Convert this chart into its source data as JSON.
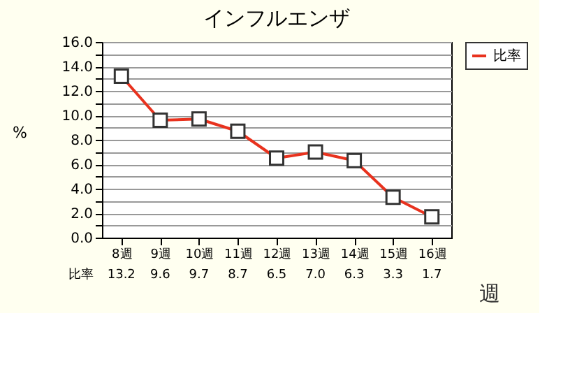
{
  "chart_data": {
    "type": "line",
    "title": "インフルエンザ",
    "xlabel": "週",
    "ylabel": "%",
    "categories": [
      "8週",
      "9週",
      "10週",
      "11週",
      "12週",
      "13週",
      "14週",
      "15週",
      "16週"
    ],
    "series": [
      {
        "name": "比率",
        "color": "#e8321e",
        "values": [
          13.2,
          9.6,
          9.7,
          8.7,
          6.5,
          7.0,
          6.3,
          3.3,
          1.7
        ],
        "value_labels": [
          "13.2",
          "9.6",
          "9.7",
          "8.7",
          "6.5",
          "7.0",
          "6.3",
          "3.3",
          "1.7"
        ]
      }
    ],
    "ylim": [
      0,
      16
    ],
    "yticks": [
      {
        "value": 0,
        "label": "0.0"
      },
      {
        "value": 1,
        "label": null
      },
      {
        "value": 2,
        "label": "2.0"
      },
      {
        "value": 3,
        "label": null
      },
      {
        "value": 4,
        "label": "4.0"
      },
      {
        "value": 5,
        "label": null
      },
      {
        "value": 6,
        "label": "6.0"
      },
      {
        "value": 7,
        "label": null
      },
      {
        "value": 8,
        "label": "8.0"
      },
      {
        "value": 9,
        "label": null
      },
      {
        "value": 10,
        "label": "10.0"
      },
      {
        "value": 11,
        "label": null
      },
      {
        "value": 12,
        "label": "12.0"
      },
      {
        "value": 13,
        "label": null
      },
      {
        "value": 14,
        "label": "14.0"
      },
      {
        "value": 15,
        "label": null
      },
      {
        "value": 16,
        "label": "16.0"
      }
    ],
    "grid": "y",
    "legend": "top right",
    "marker": "square",
    "line_style": "solid"
  }
}
